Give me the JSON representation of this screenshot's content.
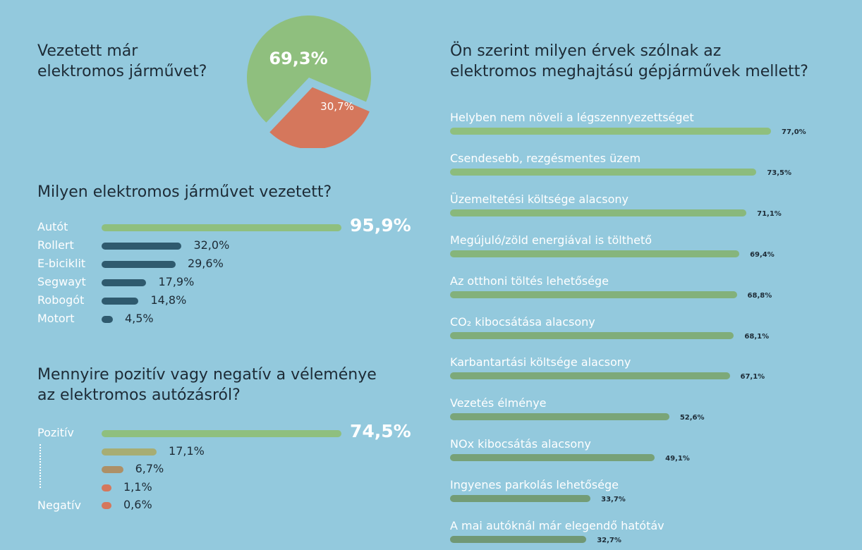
{
  "pie_section": {
    "question": "Vezetett már\nelektromos járművet?"
  },
  "vehicles_section": {
    "question": "Milyen elektromos járművet vezetett?"
  },
  "opinion_section": {
    "question": "Mennyire pozitív vagy negatív a véleménye\naz elektromos autózásról?",
    "positive_label": "Pozitív",
    "negative_label": "Negatív"
  },
  "arguments_section": {
    "question": "Ön szerint milyen érvek szólnak az\nelektromos meghajtású gépjárművek mellett?"
  },
  "chart_data": [
    {
      "type": "pie",
      "title": "Vezetett már elektromos járművet?",
      "values": [
        69.3,
        30.7
      ],
      "value_labels": [
        "69,3%",
        "30,7%"
      ],
      "colors": [
        "#8fbf7e",
        "#d5775c"
      ]
    },
    {
      "type": "bar",
      "orientation": "horizontal",
      "title": "Milyen elektromos járművet vezetett?",
      "categories": [
        "Autót",
        "Rollert",
        "E-biciklit",
        "Segwayt",
        "Robogót",
        "Motort"
      ],
      "values": [
        95.9,
        32.0,
        29.6,
        17.9,
        14.8,
        4.5
      ],
      "value_labels": [
        "95,9%",
        "32,0%",
        "29,6%",
        "17,9%",
        "14,8%",
        "4,5%"
      ],
      "colors": [
        "#8fbf7e",
        "#2f5a6e",
        "#2f5a6e",
        "#2f5a6e",
        "#2f5a6e",
        "#2f5a6e"
      ]
    },
    {
      "type": "bar",
      "orientation": "horizontal",
      "title": "Mennyire pozitív vagy negatív a véleménye az elektromos autózásról?",
      "categories": [
        "Pozitív",
        "",
        "",
        "",
        "Negatív"
      ],
      "values": [
        74.5,
        17.1,
        6.7,
        1.1,
        0.6
      ],
      "value_labels": [
        "74,5%",
        "17,1%",
        "6,7%",
        "1,1%",
        "0,6%"
      ],
      "colors": [
        "#8fbf7e",
        "#a7ad73",
        "#ad9067",
        "#d5775c",
        "#d5775c"
      ]
    },
    {
      "type": "bar",
      "orientation": "horizontal",
      "title": "Ön szerint milyen érvek szólnak az elektromos meghajtású gépjárművek mellett?",
      "categories": [
        "Helyben nem növeli a légszennyezettséget",
        "Csendesebb, rezgésmentes üzem",
        "Üzemeltetési költsége alacsony",
        "Megújuló/zöld energiával is tölthető",
        "Az otthoni töltés lehetősége",
        "CO₂ kibocsátása alacsony",
        "Karbantartási költsége alacsony",
        "Vezetés élménye",
        "NOx kibocsátás alacsony",
        "Ingyenes parkolás lehetősége",
        "A mai autóknál már elegendő hatótáv"
      ],
      "values": [
        77.0,
        73.5,
        71.1,
        69.4,
        68.8,
        68.1,
        67.1,
        52.6,
        49.1,
        33.7,
        32.7
      ],
      "value_labels": [
        "77,0%",
        "73,5%",
        "71,1%",
        "69,4%",
        "68,8%",
        "68,1%",
        "67,1%",
        "52,6%",
        "49,1%",
        "33,7%",
        "32,7%"
      ],
      "colors": [
        "#8fbf7e",
        "#8cbc7d",
        "#89b87c",
        "#86b57c",
        "#83b17b",
        "#80ad7a",
        "#7da979",
        "#7aa578",
        "#77a177",
        "#739c76",
        "#709875"
      ]
    }
  ]
}
